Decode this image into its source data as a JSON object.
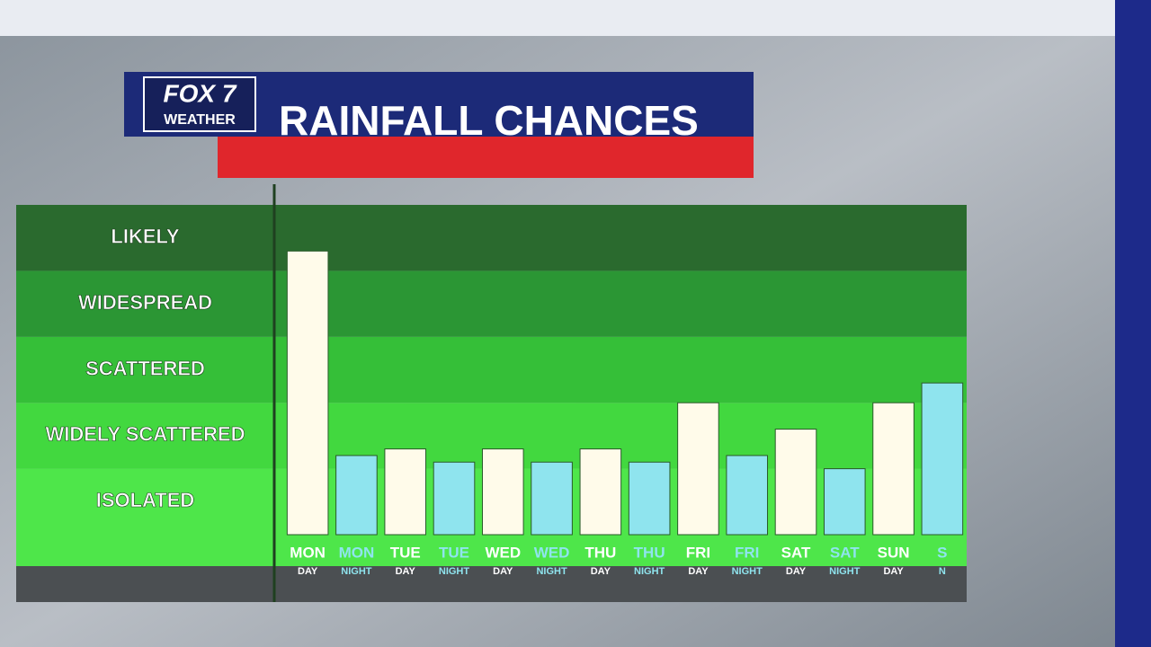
{
  "chart_data": {
    "type": "bar",
    "brand": "FOX 7",
    "brand_sub": "WEATHER",
    "title": "RAINFALL CHANCES",
    "categories": [
      "MON",
      "MON",
      "TUE",
      "TUE",
      "WED",
      "WED",
      "THU",
      "THU",
      "FRI",
      "FRI",
      "SAT",
      "SAT",
      "SUN",
      "S"
    ],
    "periods": [
      "DAY",
      "NIGHT",
      "DAY",
      "NIGHT",
      "DAY",
      "NIGHT",
      "DAY",
      "NIGHT",
      "DAY",
      "NIGHT",
      "DAY",
      "NIGHT",
      "DAY",
      "N"
    ],
    "values": [
      4.3,
      1.2,
      1.3,
      1.1,
      1.3,
      1.1,
      1.3,
      1.1,
      2.0,
      1.2,
      1.6,
      1.0,
      2.0,
      2.3
    ],
    "colors": [
      "#fffbea",
      "#8fe4ee",
      "#fffbea",
      "#8fe4ee",
      "#fffbea",
      "#8fe4ee",
      "#fffbea",
      "#8fe4ee",
      "#fffbea",
      "#8fe4ee",
      "#fffbea",
      "#8fe4ee",
      "#fffbea",
      "#8fe4ee"
    ],
    "ylim": [
      0,
      5
    ],
    "yticks": [
      {
        "value": 0.5,
        "label": "ISOLATED"
      },
      {
        "value": 1.5,
        "label": "WIDELY SCATTERED"
      },
      {
        "value": 2.5,
        "label": "SCATTERED"
      },
      {
        "value": 3.5,
        "label": "WIDESPREAD"
      },
      {
        "value": 4.5,
        "label": "LIKELY"
      }
    ],
    "band_colors": [
      "#4ee64a",
      "#42d83f",
      "#35bf38",
      "#2b9634",
      "#2a6a2e"
    ]
  }
}
